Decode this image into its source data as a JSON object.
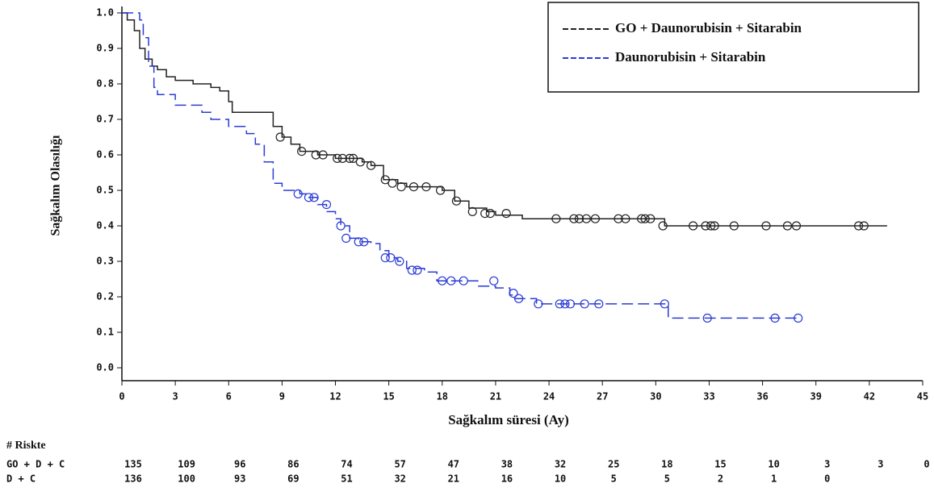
{
  "chart_data": {
    "type": "step",
    "y_label": "Sağkalım Olasılığı",
    "x_label": "Sağkalım süresi (Ay)",
    "xlim": [
      0,
      45
    ],
    "xticks": [
      0,
      3,
      6,
      9,
      12,
      15,
      18,
      21,
      24,
      27,
      30,
      33,
      36,
      39,
      42,
      45
    ],
    "ylim": [
      0,
      1
    ],
    "yticks": [
      {
        "value": 0,
        "label": "0.0"
      },
      0.1,
      0.2,
      0.3,
      0.4,
      0.5,
      0.6,
      0.7,
      0.8,
      0.9,
      {
        "value": 1,
        "label": "1.0"
      }
    ],
    "legend": "top-right",
    "series": [
      {
        "name": "GO + Daunorubisin + Sitarabin",
        "color": "#222222",
        "dashed": false,
        "x": [
          0,
          0.3,
          0.7,
          1,
          1.3,
          1.7,
          2,
          2.5,
          3,
          4,
          5,
          5.5,
          6,
          6.2,
          8.5,
          9,
          9.5,
          10,
          11,
          12,
          13.5,
          14,
          14.7,
          15.5,
          16,
          18,
          18.7,
          19.5,
          20.5,
          21,
          22.5,
          30.5,
          43
        ],
        "values": [
          1.0,
          0.98,
          0.95,
          0.9,
          0.87,
          0.85,
          0.84,
          0.82,
          0.81,
          0.8,
          0.79,
          0.78,
          0.75,
          0.72,
          0.68,
          0.65,
          0.63,
          0.61,
          0.6,
          0.59,
          0.58,
          0.57,
          0.53,
          0.52,
          0.51,
          0.5,
          0.47,
          0.45,
          0.44,
          0.43,
          0.42,
          0.4,
          0.4
        ],
        "censor_x": [
          8.9,
          10.1,
          10.9,
          11.3,
          12.1,
          12.4,
          12.8,
          13.0,
          13.4,
          14.0,
          14.8,
          15.2,
          15.7,
          16.4,
          17.1,
          17.9,
          18.8,
          19.7,
          20.4,
          20.7,
          21.6,
          24.4,
          25.4,
          25.7,
          26.1,
          26.6,
          27.9,
          28.3,
          29.2,
          29.4,
          29.7,
          30.4,
          32.1,
          32.8,
          33.1,
          33.3,
          34.4,
          36.2,
          37.4,
          37.9,
          41.4,
          41.7
        ],
        "censor_values": [
          0.65,
          0.61,
          0.6,
          0.6,
          0.59,
          0.59,
          0.59,
          0.59,
          0.58,
          0.57,
          0.53,
          0.52,
          0.51,
          0.51,
          0.51,
          0.5,
          0.47,
          0.44,
          0.435,
          0.435,
          0.435,
          0.42,
          0.42,
          0.42,
          0.42,
          0.42,
          0.42,
          0.42,
          0.42,
          0.42,
          0.42,
          0.4,
          0.4,
          0.4,
          0.4,
          0.4,
          0.4,
          0.4,
          0.4,
          0.4,
          0.4,
          0.4
        ]
      },
      {
        "name": "Daunorubisin + Sitarabin",
        "color": "#2a3bd6",
        "dashed": true,
        "x": [
          0,
          1,
          1.2,
          1.5,
          1.8,
          2,
          3,
          4.5,
          5,
          6,
          7,
          7.5,
          8,
          8.5,
          9,
          10,
          10.5,
          11,
          11.5,
          12,
          12.3,
          12.8,
          13.3,
          14,
          14.5,
          15,
          15.5,
          16,
          17,
          17.7,
          20,
          21,
          21.8,
          22,
          23.3,
          30.7,
          37.9
        ],
        "values": [
          1.0,
          0.98,
          0.93,
          0.85,
          0.79,
          0.77,
          0.74,
          0.72,
          0.7,
          0.68,
          0.66,
          0.63,
          0.58,
          0.52,
          0.5,
          0.49,
          0.48,
          0.46,
          0.44,
          0.42,
          0.4,
          0.365,
          0.355,
          0.35,
          0.33,
          0.31,
          0.3,
          0.28,
          0.27,
          0.245,
          0.23,
          0.225,
          0.205,
          0.195,
          0.18,
          0.14,
          0.14
        ],
        "censor_x": [
          9.9,
          10.5,
          10.8,
          11.5,
          12.3,
          12.6,
          13.3,
          13.6,
          14.8,
          15.1,
          15.6,
          16.3,
          16.6,
          18.0,
          18.5,
          19.2,
          20.9,
          22.0,
          22.3,
          23.4,
          24.6,
          24.9,
          25.2,
          26.0,
          26.8,
          30.5,
          32.9,
          36.7,
          38.0
        ],
        "censor_values": [
          0.49,
          0.48,
          0.48,
          0.46,
          0.4,
          0.365,
          0.355,
          0.355,
          0.31,
          0.31,
          0.3,
          0.275,
          0.275,
          0.245,
          0.245,
          0.245,
          0.245,
          0.21,
          0.195,
          0.18,
          0.18,
          0.18,
          0.18,
          0.18,
          0.18,
          0.18,
          0.14,
          0.14,
          0.14
        ]
      }
    ],
    "risk_table": {
      "title": "# Riskte",
      "rows": [
        {
          "label": "GO + D + C",
          "values": [
            135,
            109,
            96,
            86,
            74,
            57,
            47,
            38,
            32,
            25,
            18,
            15,
            10,
            3,
            3,
            0
          ]
        },
        {
          "label": "D + C",
          "values": [
            136,
            100,
            93,
            69,
            51,
            32,
            21,
            16,
            10,
            5,
            5,
            2,
            1,
            0
          ]
        }
      ]
    }
  }
}
